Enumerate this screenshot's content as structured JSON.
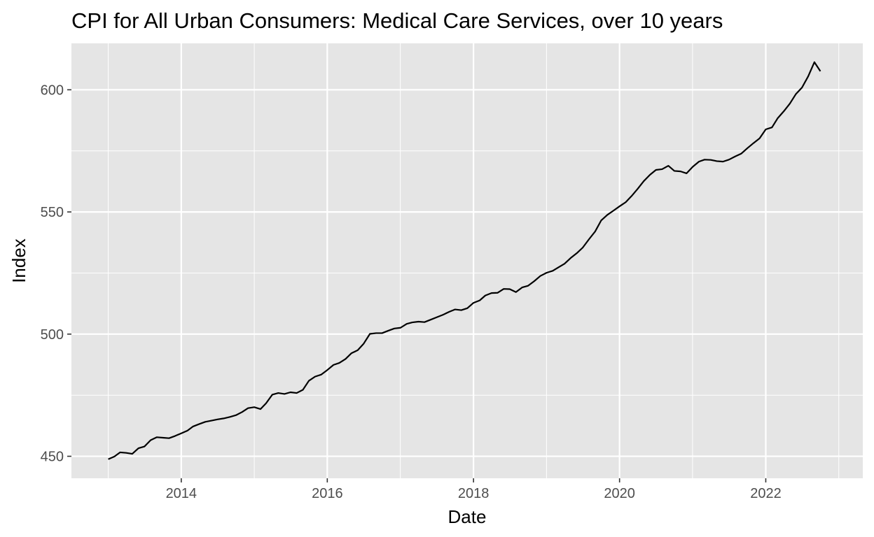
{
  "chart_data": {
    "type": "line",
    "title": "CPI for All Urban Consumers: Medical Care Services, over 10 years",
    "xlabel": "Date",
    "ylabel": "Index",
    "x_tick_labels": [
      "2014",
      "2016",
      "2018",
      "2020",
      "2022"
    ],
    "x_ticks": [
      "2014-01-01",
      "2016-01-01",
      "2018-01-01",
      "2020-01-01",
      "2022-01-01"
    ],
    "y_tick_labels": [
      "450",
      "500",
      "550",
      "600"
    ],
    "y_ticks": [
      450,
      500,
      550,
      600
    ],
    "xlim": [
      "2012-07-01",
      "2023-05-01"
    ],
    "ylim": [
      441,
      619
    ],
    "grid": true,
    "legend": "none",
    "colors": {
      "panel": "#E5E5E5",
      "grid": "#FFFFFF",
      "line": "#000000",
      "tick_text": "#4D4D4D"
    },
    "series": [
      {
        "x": [
          "2013-01-01",
          "2013-02-01",
          "2013-03-01",
          "2013-04-01",
          "2013-05-01",
          "2013-06-01",
          "2013-07-01",
          "2013-08-01",
          "2013-09-01",
          "2013-10-01",
          "2013-11-01",
          "2013-12-01",
          "2014-01-01",
          "2014-02-01",
          "2014-03-01",
          "2014-04-01",
          "2014-05-01",
          "2014-06-01",
          "2014-07-01",
          "2014-08-01",
          "2014-09-01",
          "2014-10-01",
          "2014-11-01",
          "2014-12-01",
          "2015-01-01",
          "2015-02-01",
          "2015-03-01",
          "2015-04-01",
          "2015-05-01",
          "2015-06-01",
          "2015-07-01",
          "2015-08-01",
          "2015-09-01",
          "2015-10-01",
          "2015-11-01",
          "2015-12-01",
          "2016-01-01",
          "2016-02-01",
          "2016-03-01",
          "2016-04-01",
          "2016-05-01",
          "2016-06-01",
          "2016-07-01",
          "2016-08-01",
          "2016-09-01",
          "2016-10-01",
          "2016-11-01",
          "2016-12-01",
          "2017-01-01",
          "2017-02-01",
          "2017-03-01",
          "2017-04-01",
          "2017-05-01",
          "2017-06-01",
          "2017-07-01",
          "2017-08-01",
          "2017-09-01",
          "2017-10-01",
          "2017-11-01",
          "2017-12-01",
          "2018-01-01",
          "2018-02-01",
          "2018-03-01",
          "2018-04-01",
          "2018-05-01",
          "2018-06-01",
          "2018-07-01",
          "2018-08-01",
          "2018-09-01",
          "2018-10-01",
          "2018-11-01",
          "2018-12-01",
          "2019-01-01",
          "2019-02-01",
          "2019-03-01",
          "2019-04-01",
          "2019-05-01",
          "2019-06-01",
          "2019-07-01",
          "2019-08-01",
          "2019-09-01",
          "2019-10-01",
          "2019-11-01",
          "2019-12-01",
          "2020-01-01",
          "2020-02-01",
          "2020-03-01",
          "2020-04-01",
          "2020-05-01",
          "2020-06-01",
          "2020-07-01",
          "2020-08-01",
          "2020-09-01",
          "2020-10-01",
          "2020-11-01",
          "2020-12-01",
          "2021-01-01",
          "2021-02-01",
          "2021-03-01",
          "2021-04-01",
          "2021-05-01",
          "2021-06-01",
          "2021-07-01",
          "2021-08-01",
          "2021-09-01",
          "2021-10-01",
          "2021-11-01",
          "2021-12-01",
          "2022-01-01",
          "2022-02-01",
          "2022-03-01",
          "2022-04-01",
          "2022-05-01",
          "2022-06-01",
          "2022-07-01",
          "2022-08-01",
          "2022-09-01",
          "2022-10-01"
        ],
        "y": [
          448.8,
          449.9,
          451.6,
          451.4,
          451.0,
          453.3,
          454.0,
          456.6,
          457.8,
          457.6,
          457.4,
          458.3,
          459.4,
          460.5,
          462.2,
          463.2,
          464.1,
          464.6,
          465.1,
          465.5,
          466.1,
          466.8,
          468.1,
          469.7,
          470.1,
          469.3,
          471.7,
          475.2,
          475.9,
          475.5,
          476.2,
          475.9,
          477.2,
          480.9,
          482.6,
          483.4,
          485.3,
          487.4,
          488.2,
          489.8,
          492.2,
          493.4,
          496.1,
          500.1,
          500.4,
          500.4,
          501.4,
          502.3,
          502.6,
          504.2,
          504.8,
          505.1,
          504.9,
          505.9,
          506.9,
          507.9,
          509.1,
          510.1,
          509.8,
          510.6,
          512.8,
          513.8,
          515.8,
          516.8,
          516.9,
          518.5,
          518.4,
          517.2,
          519.1,
          519.8,
          521.7,
          523.8,
          525.1,
          525.9,
          527.3,
          528.8,
          531.1,
          533.1,
          535.4,
          538.8,
          542.0,
          546.5,
          548.8,
          550.5,
          552.3,
          554.0,
          556.5,
          559.5,
          562.6,
          565.2,
          567.2,
          567.5,
          568.9,
          566.8,
          566.6,
          565.8,
          568.5,
          570.6,
          571.4,
          571.3,
          570.8,
          570.6,
          571.4,
          572.7,
          573.9,
          576.1,
          578.2,
          580.1,
          583.8,
          584.6,
          588.3,
          591.2,
          594.3,
          598.3,
          600.9,
          605.5,
          611.3,
          607.6
        ]
      }
    ]
  }
}
